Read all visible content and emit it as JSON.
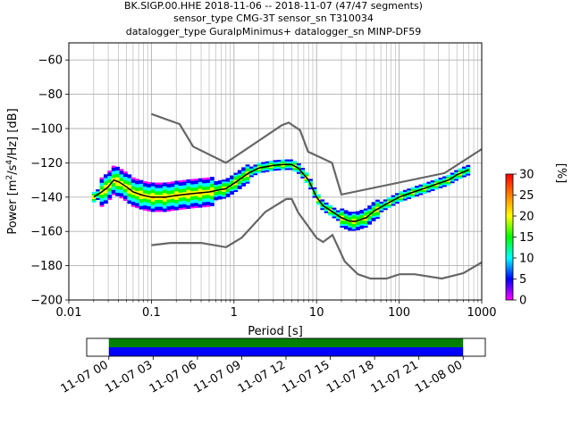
{
  "title_lines": [
    "BK.SIGP.00.HHE   2018-11-06 -- 2018-11-07  (47/47 segments)",
    "sensor_type CMG-3T sensor_sn T310034",
    "datalogger_type GuralpMinimus+ datalogger_sn MINP-DF59"
  ],
  "chart_data": {
    "type": "heatmap",
    "title": "BK.SIGP.00.HHE   2018-11-06 -- 2018-11-07  (47/47 segments)",
    "xlabel": "Period [s]",
    "ylabel": "Power [m^2/s^4/Hz] [dB]",
    "xscale": "log",
    "xlim": [
      0.01,
      1000
    ],
    "ylim": [
      -200,
      -50
    ],
    "x_ticks": [
      0.01,
      0.1,
      1,
      10,
      100,
      1000
    ],
    "x_tick_labels": [
      "0.01",
      "0.1",
      "1",
      "10",
      "100",
      "1000"
    ],
    "y_ticks": [
      -200,
      -180,
      -160,
      -140,
      -120,
      -100,
      -80,
      -60
    ],
    "y_tick_labels": [
      "−200",
      "−180",
      "−160",
      "−140",
      "−120",
      "−100",
      "−80",
      "−60"
    ],
    "grid": true,
    "colorbar": {
      "label": "[%]",
      "range": [
        0,
        30
      ],
      "ticks": [
        0,
        5,
        10,
        15,
        20,
        25,
        30
      ],
      "tick_labels": [
        "0",
        "5",
        "10",
        "15",
        "20",
        "25",
        "30"
      ],
      "colormap": [
        "#ff00ff",
        "#0000ff",
        "#00ffff",
        "#00ff00",
        "#ffff00",
        "#ff8000",
        "#ff0000"
      ]
    },
    "noise_models": {
      "color": "#666666",
      "high": {
        "name": "NHNM",
        "x": [
          0.1,
          0.22,
          0.32,
          0.8,
          3.8,
          4.6,
          6.3,
          7.9,
          15.4,
          20,
          354.8,
          1000
        ],
        "y": [
          -91.5,
          -97.4,
          -110.5,
          -120,
          -98,
          -96.5,
          -101,
          -113.5,
          -120,
          -138.5,
          -126,
          -112
        ]
      },
      "low": {
        "name": "NLNM",
        "x": [
          0.1,
          0.17,
          0.4,
          0.8,
          1.24,
          2.4,
          4.3,
          5,
          6,
          10,
          12,
          15.6,
          21.9,
          31.6,
          45,
          70,
          101,
          154,
          328,
          600,
          1000
        ],
        "y": [
          -168,
          -166.7,
          -166.7,
          -169.2,
          -163.7,
          -148.6,
          -141.1,
          -141.1,
          -149,
          -163.8,
          -166.2,
          -162.1,
          -177.5,
          -185,
          -187.5,
          -187.5,
          -185,
          -185,
          -187.5,
          -184.4,
          -178
        ]
      }
    },
    "median": {
      "name": "mean",
      "color": "#000000",
      "x": [
        0.02,
        0.025,
        0.03,
        0.035,
        0.04,
        0.05,
        0.06,
        0.08,
        0.1,
        0.15,
        0.2,
        0.3,
        0.5,
        0.8,
        1,
        1.5,
        2,
        3,
        4,
        5,
        6,
        8,
        10,
        12,
        15,
        20,
        25,
        30,
        40,
        50,
        70,
        100,
        150,
        200,
        300,
        400,
        500,
        700
      ],
      "y": [
        -140,
        -137,
        -134,
        -130,
        -131,
        -134,
        -137,
        -139,
        -140,
        -140,
        -139,
        -138,
        -137,
        -135,
        -132,
        -126,
        -123,
        -121.5,
        -121,
        -121,
        -123,
        -130,
        -140,
        -145,
        -148,
        -152,
        -154,
        -154,
        -152,
        -148,
        -144,
        -140,
        -137,
        -135,
        -132,
        -130,
        -127,
        -124
      ]
    },
    "x_time_axis": {
      "ticks": [
        "11-07 00",
        "11-07 03",
        "11-07 06",
        "11-07 09",
        "11-07 12",
        "11-07 15",
        "11-07 18",
        "11-07 21",
        "11-08 00"
      ],
      "range_hours": [
        -1.5,
        25.5
      ],
      "coverage": [
        {
          "start_hours": 0,
          "end_hours": 24,
          "color": "#008000"
        },
        {
          "start_hours": 0,
          "end_hours": 24,
          "color": "#0000ff"
        }
      ]
    }
  }
}
